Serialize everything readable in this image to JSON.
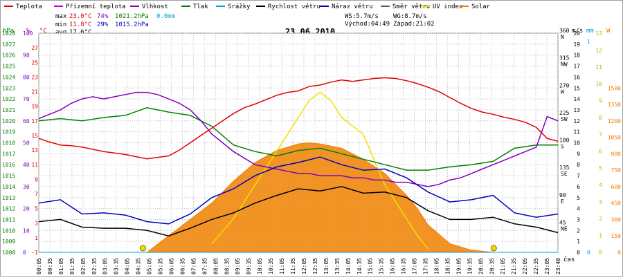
{
  "legend": [
    {
      "label": "Teplota",
      "color": "#e00000"
    },
    {
      "label": "Přízemní teplota",
      "color": "#c000c0"
    },
    {
      "label": "Vlhkost",
      "color": "#8000c0"
    },
    {
      "label": "Tlak",
      "color": "#008000"
    },
    {
      "label": "Srážky",
      "color": "#00a0e0"
    },
    {
      "label": "Rychlost větru",
      "color": "#000000"
    },
    {
      "label": "Náraz větru",
      "color": "#0000c0"
    },
    {
      "label": "Směr větru",
      "color": "#606060"
    },
    {
      "label": "UV index",
      "color": "#f0e000"
    },
    {
      "label": "Solar",
      "color": "#f08000"
    }
  ],
  "stats": {
    "max": {
      "label": "max",
      "temp": "23.0°C",
      "hum": "74%",
      "press": "1021.2hPa",
      "rain": "0.0mm"
    },
    "min": {
      "label": "min",
      "temp": "11.8°C",
      "hum": "29%",
      "press": "1015.2hPa"
    },
    "avg": {
      "label": "avg",
      "temp": "17.6°C"
    }
  },
  "wind_info": {
    "ws": "WS:5.7m/s",
    "wg": "WG:8.7m/s",
    "sunrise": "Východ:04:49",
    "sunset": "Západ:21:02"
  },
  "date": "23.06.2010",
  "axis_units": {
    "hpa": "hPa",
    "pct": "%",
    "degc": "°C",
    "ms": "m/s",
    "mm": "mm",
    "w": "W",
    "time": "čas"
  },
  "colors": {
    "temp": "#e00000",
    "hum": "#8000c0",
    "press": "#008000",
    "ws": "#000000",
    "wg": "#0000c0",
    "dir": "#707070",
    "uv": "#f0e000",
    "solar": "#f08000",
    "rain": "#00a0e0",
    "grid": "#c0c0c0"
  },
  "chart_data": {
    "type": "line",
    "title": "23.06.2010",
    "x_unit": "čas",
    "x_ticks": [
      "00:05",
      "00:35",
      "01:05",
      "01:35",
      "02:05",
      "02:35",
      "03:05",
      "03:35",
      "04:05",
      "04:35",
      "05:05",
      "05:35",
      "06:05",
      "06:35",
      "07:05",
      "07:35",
      "08:05",
      "08:35",
      "09:05",
      "09:35",
      "10:05",
      "10:35",
      "11:05",
      "11:35",
      "12:05",
      "12:35",
      "13:05",
      "13:35",
      "14:05",
      "14:35",
      "15:05",
      "15:35",
      "16:05",
      "16:35",
      "17:05",
      "17:35",
      "18:05",
      "18:35",
      "19:05",
      "19:35",
      "20:05",
      "20:35",
      "21:05",
      "21:35",
      "22:05",
      "22:35",
      "23:05",
      "23:40"
    ],
    "x_range_hours": [
      0,
      24
    ],
    "left_axes": {
      "pressure_hPa": {
        "range": [
          1008,
          1028
        ],
        "ticks": [
          "1008",
          "1009",
          "1010",
          "1011",
          "1012",
          "1013",
          "1014",
          "1015",
          "1016",
          "1017",
          "1018",
          "1019",
          "1020",
          "1021",
          "1022",
          "1023",
          "1024",
          "1025",
          "1026",
          "1027",
          "1028"
        ]
      },
      "humidity_pct": {
        "range": [
          0,
          100
        ],
        "ticks": [
          "0",
          "10",
          "20",
          "30",
          "40",
          "50",
          "60",
          "70",
          "80",
          "90",
          "100"
        ]
      },
      "temperature_C": {
        "range": [
          -1,
          29
        ],
        "ticks": [
          "-1",
          "1",
          "3",
          "5",
          "7",
          "9",
          "11",
          "13",
          "15",
          "17",
          "19",
          "21",
          "23",
          "25",
          "27"
        ]
      }
    },
    "right_axes": {
      "wind_speed_ms": {
        "range": [
          0,
          20
        ],
        "ticks": [
          "0",
          "1",
          "2",
          "3",
          "4",
          "5",
          "6",
          "7",
          "8",
          "9",
          "10",
          "11",
          "12",
          "13",
          "14",
          "15",
          "16",
          "17",
          "18",
          "19",
          "20"
        ]
      },
      "wind_direction": {
        "ticks": [
          {
            "deg": "45",
            "name": "NE"
          },
          {
            "deg": "90",
            "name": "E"
          },
          {
            "deg": "135",
            "name": "SE"
          },
          {
            "deg": "180",
            "name": "S"
          },
          {
            "deg": "225",
            "name": "SW"
          },
          {
            "deg": "270",
            "name": "W"
          },
          {
            "deg": "315",
            "name": "NW"
          },
          {
            "deg": "360",
            "name": "N"
          }
        ]
      },
      "rain_mm": {
        "range": [
          0,
          1
        ],
        "ticks": [
          "0",
          "1"
        ]
      },
      "uv_index": {
        "range": [
          0,
          13
        ],
        "ticks": [
          "0",
          "1",
          "2",
          "3",
          "4",
          "5",
          "6",
          "7",
          "8",
          "9",
          "10",
          "11",
          "12",
          "13"
        ]
      },
      "solar_W": {
        "range": [
          0,
          2000
        ],
        "ticks": [
          "0",
          "150",
          "300",
          "450",
          "600",
          "750",
          "900",
          "1050",
          "1200",
          "1350",
          "1500"
        ]
      }
    },
    "series": [
      {
        "name": "Teplota",
        "unit": "°C",
        "x": [
          0,
          0.5,
          1,
          1.5,
          2,
          2.5,
          3,
          3.5,
          4,
          4.5,
          5,
          5.5,
          6,
          6.5,
          7,
          7.5,
          8,
          8.5,
          9,
          9.5,
          10,
          10.5,
          11,
          11.5,
          12,
          12.5,
          13,
          13.5,
          14,
          14.5,
          15,
          15.5,
          16,
          16.5,
          17,
          17.5,
          18,
          18.5,
          19,
          19.5,
          20,
          20.5,
          21,
          21.5,
          22,
          22.5,
          23,
          23.5,
          24
        ],
        "values": [
          14.6,
          14.1,
          13.7,
          13.6,
          13.4,
          13.1,
          12.8,
          12.6,
          12.4,
          12.1,
          11.8,
          12.0,
          12.2,
          13.0,
          14.0,
          15.0,
          16.0,
          17.0,
          18.0,
          18.8,
          19.3,
          19.9,
          20.5,
          20.9,
          21.1,
          21.7,
          21.9,
          22.3,
          22.6,
          22.4,
          22.6,
          22.8,
          22.9,
          22.8,
          22.5,
          22.1,
          21.6,
          21.0,
          20.2,
          19.4,
          18.7,
          18.2,
          17.9,
          17.5,
          17.2,
          16.8,
          16.1,
          14.6,
          14.2
        ]
      },
      {
        "name": "Vlhkost",
        "unit": "%",
        "x": [
          0,
          0.5,
          1,
          1.5,
          2,
          2.5,
          3,
          3.5,
          4,
          4.5,
          5,
          5.5,
          6,
          6.5,
          7,
          7.5,
          8,
          8.5,
          9,
          9.5,
          10,
          10.5,
          11,
          11.5,
          12,
          12.5,
          13,
          13.5,
          14,
          14.5,
          15,
          15.5,
          16,
          16.5,
          17,
          17.5,
          18,
          18.5,
          19,
          19.5,
          20,
          20.5,
          21,
          21.5,
          22,
          22.5,
          23,
          23.5,
          24
        ],
        "values": [
          61,
          63,
          65,
          68,
          70,
          71,
          70,
          71,
          72,
          73,
          73,
          72,
          70,
          68,
          65,
          60,
          54,
          50,
          46,
          43,
          40,
          39,
          38,
          37,
          36,
          36,
          35,
          35,
          35,
          34,
          34,
          33,
          33,
          32,
          32,
          31,
          30,
          31,
          33,
          34,
          36,
          38,
          40,
          42,
          44,
          46,
          48,
          62,
          60
        ]
      },
      {
        "name": "Tlak",
        "unit": "hPa",
        "x": [
          0,
          1,
          2,
          3,
          4,
          5,
          6,
          7,
          8,
          9,
          10,
          11,
          12,
          13,
          14,
          15,
          16,
          17,
          18,
          19,
          20,
          21,
          22,
          23,
          24
        ],
        "values": [
          1020.0,
          1020.2,
          1020.0,
          1020.3,
          1020.5,
          1021.2,
          1020.8,
          1020.5,
          1019.5,
          1017.8,
          1017.2,
          1016.8,
          1017.3,
          1017.5,
          1017.0,
          1016.5,
          1016.0,
          1015.5,
          1015.5,
          1015.8,
          1016.0,
          1016.3,
          1017.5,
          1017.8,
          1017.8
        ]
      },
      {
        "name": "Rychlost větru",
        "unit": "m/s",
        "x": [
          0,
          1,
          2,
          3,
          4,
          5,
          6,
          7,
          8,
          9,
          10,
          11,
          12,
          13,
          14,
          15,
          16,
          17,
          18,
          19,
          20,
          21,
          22,
          23,
          24
        ],
        "values": [
          2.8,
          3.0,
          2.3,
          2.2,
          2.2,
          2.0,
          1.5,
          2.2,
          3.0,
          3.6,
          4.5,
          5.2,
          5.8,
          5.6,
          6.0,
          5.4,
          5.5,
          5.0,
          3.8,
          3.0,
          3.0,
          3.2,
          2.6,
          2.3,
          1.8
        ]
      },
      {
        "name": "Náraz větru",
        "unit": "m/s",
        "x": [
          0,
          1,
          2,
          3,
          4,
          5,
          6,
          7,
          8,
          9,
          10,
          11,
          12,
          13,
          14,
          15,
          16,
          17,
          18,
          19,
          20,
          21,
          22,
          23,
          24
        ],
        "values": [
          4.5,
          4.8,
          3.5,
          3.6,
          3.4,
          2.8,
          2.6,
          3.5,
          5.0,
          5.8,
          7.0,
          7.8,
          8.2,
          8.7,
          8.0,
          7.5,
          7.6,
          6.8,
          5.5,
          4.6,
          4.8,
          5.2,
          3.6,
          3.2,
          3.5
        ]
      },
      {
        "name": "UV index",
        "unit": "",
        "x": [
          8,
          9,
          10,
          11,
          12,
          12.5,
          13,
          13.5,
          14,
          15,
          16,
          17,
          17.5,
          18
        ],
        "values": [
          0.5,
          2,
          4,
          6,
          8,
          9,
          9.5,
          9,
          8,
          7,
          4,
          2,
          1,
          0.2
        ]
      },
      {
        "name": "Solar",
        "unit": "W",
        "x": [
          5,
          6,
          7,
          8,
          9,
          10,
          11,
          12,
          12.5,
          13,
          14,
          15,
          16,
          17,
          17.5,
          18,
          19,
          20,
          21
        ],
        "values": [
          0,
          150,
          300,
          450,
          650,
          820,
          930,
          990,
          1000,
          990,
          950,
          850,
          720,
          520,
          400,
          250,
          80,
          20,
          0
        ]
      },
      {
        "name": "Srážky",
        "unit": "mm",
        "x": [
          0,
          24
        ],
        "values": [
          0.0,
          0.0
        ]
      }
    ]
  }
}
